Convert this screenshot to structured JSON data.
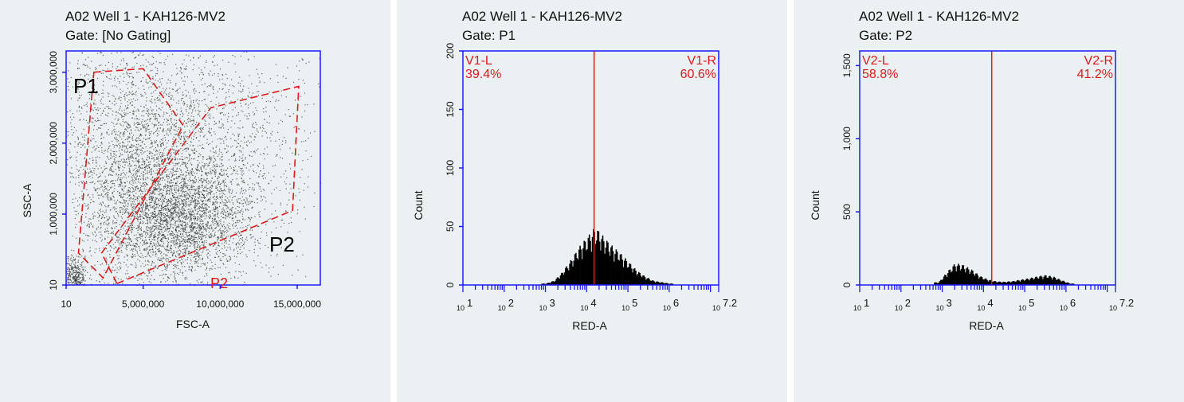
{
  "colors": {
    "panel_bg": "#ebf1f3",
    "axis": "#1a1aff",
    "gate": "#e01818",
    "dots": "#333333",
    "hist": "#000000"
  },
  "panels": [
    {
      "title": "A02 Well 1 - KAH126-MV2",
      "gate_label": "Gate: [No Gating]",
      "xlabel": "FSC-A",
      "ylabel": "SSC-A",
      "xticks": [
        "10",
        "5,000,000",
        "10,000,000",
        "15,000,000"
      ],
      "yticks": [
        "10",
        "1,000,000",
        "2,000,000",
        "3,000,000"
      ],
      "gates": [
        {
          "name": "P1",
          "label": "P1"
        },
        {
          "name": "P2",
          "label": "P2"
        }
      ],
      "p2_partial_label": "P2"
    },
    {
      "title": "A02 Well 1 - KAH126-MV2",
      "gate_label": "Gate: P1",
      "xlabel": "RED-A",
      "ylabel": "Count",
      "xticks": [
        "10",
        "1",
        "10",
        "2",
        "10",
        "3",
        "10",
        "4",
        "10",
        "5",
        "10",
        "6",
        "10",
        "7.2"
      ],
      "yticks": [
        "0",
        "50",
        "100",
        "150",
        "200"
      ],
      "regions": {
        "left_name": "V1-L",
        "left_pct": "39.4%",
        "right_name": "V1-R",
        "right_pct": "60.6%"
      }
    },
    {
      "title": "A02 Well 1 - KAH126-MV2",
      "gate_label": "Gate: P2",
      "xlabel": "RED-A",
      "ylabel": "Count",
      "xticks": [
        "10",
        "1",
        "10",
        "2",
        "10",
        "3",
        "10",
        "4",
        "10",
        "5",
        "10",
        "6",
        "10",
        "7.2"
      ],
      "yticks": [
        "0",
        "500",
        "1,000",
        "1,500"
      ],
      "regions": {
        "left_name": "V2-L",
        "left_pct": "58.8%",
        "right_name": "V2-R",
        "right_pct": "41.2%"
      }
    }
  ],
  "chart_data": [
    {
      "type": "scatter",
      "title": "A02 Well 1 - KAH126-MV2",
      "subtitle": "Gate: [No Gating]",
      "xlabel": "FSC-A",
      "ylabel": "SSC-A",
      "xlim": [
        10,
        16500000
      ],
      "ylim": [
        10,
        3300000
      ],
      "grid": false,
      "clusters": [
        {
          "center": [
            7500000,
            950000
          ],
          "spread": [
            2200000,
            420000
          ],
          "n": 2600
        },
        {
          "center": [
            4200000,
            1700000
          ],
          "spread": [
            2400000,
            900000
          ],
          "n": 2400
        },
        {
          "center": [
            9000000,
            1900000
          ],
          "spread": [
            3500000,
            800000
          ],
          "n": 1600
        },
        {
          "center": [
            500000,
            100000
          ],
          "spread": [
            400000,
            150000
          ],
          "n": 400
        }
      ],
      "gates": [
        {
          "name": "P1",
          "vertices": [
            [
              1800000,
              3000000
            ],
            [
              5000000,
              3050000
            ],
            [
              7600000,
              2250000
            ],
            [
              2400000,
              100000
            ],
            [
              800000,
              450000
            ]
          ]
        },
        {
          "name": "P2",
          "vertices": [
            [
              3300000,
              20000
            ],
            [
              14700000,
              1050000
            ],
            [
              15100000,
              2800000
            ],
            [
              9400000,
              2500000
            ],
            [
              2300000,
              450000
            ]
          ]
        }
      ]
    },
    {
      "type": "bar",
      "title": "A02 Well 1 - KAH126-MV2",
      "subtitle": "Gate: P1",
      "xlabel": "RED-A",
      "ylabel": "Count",
      "xscale": "log",
      "xlim_log10": [
        1,
        7.2
      ],
      "ylim": [
        0,
        200
      ],
      "x_log10": [
        3.0,
        3.2,
        3.4,
        3.6,
        3.8,
        4.0,
        4.2,
        4.4,
        4.6,
        4.8,
        5.0,
        5.2,
        5.4,
        5.6,
        5.8,
        6.0
      ],
      "values": [
        1,
        3,
        9,
        17,
        26,
        33,
        40,
        33,
        27,
        22,
        16,
        10,
        6,
        3,
        2,
        1
      ],
      "marker_log10": 4.18,
      "regions": [
        {
          "name": "V1-L",
          "pct": "39.4%"
        },
        {
          "name": "V1-R",
          "pct": "60.6%"
        }
      ]
    },
    {
      "type": "bar",
      "title": "A02 Well 1 - KAH126-MV2",
      "subtitle": "Gate: P2",
      "xlabel": "RED-A",
      "ylabel": "Count",
      "xscale": "log",
      "xlim_log10": [
        1,
        7.2
      ],
      "ylim": [
        0,
        1600
      ],
      "x_log10": [
        2.9,
        3.1,
        3.3,
        3.5,
        3.7,
        3.9,
        4.1,
        4.3,
        4.5,
        4.7,
        4.9,
        5.1,
        5.3,
        5.5,
        5.7,
        5.9,
        6.1
      ],
      "values": [
        15,
        70,
        120,
        110,
        85,
        50,
        30,
        20,
        18,
        22,
        30,
        38,
        48,
        55,
        45,
        25,
        8
      ],
      "marker_log10": 4.2,
      "regions": [
        {
          "name": "V2-L",
          "pct": "58.8%"
        },
        {
          "name": "V2-R",
          "pct": "41.2%"
        }
      ]
    }
  ]
}
